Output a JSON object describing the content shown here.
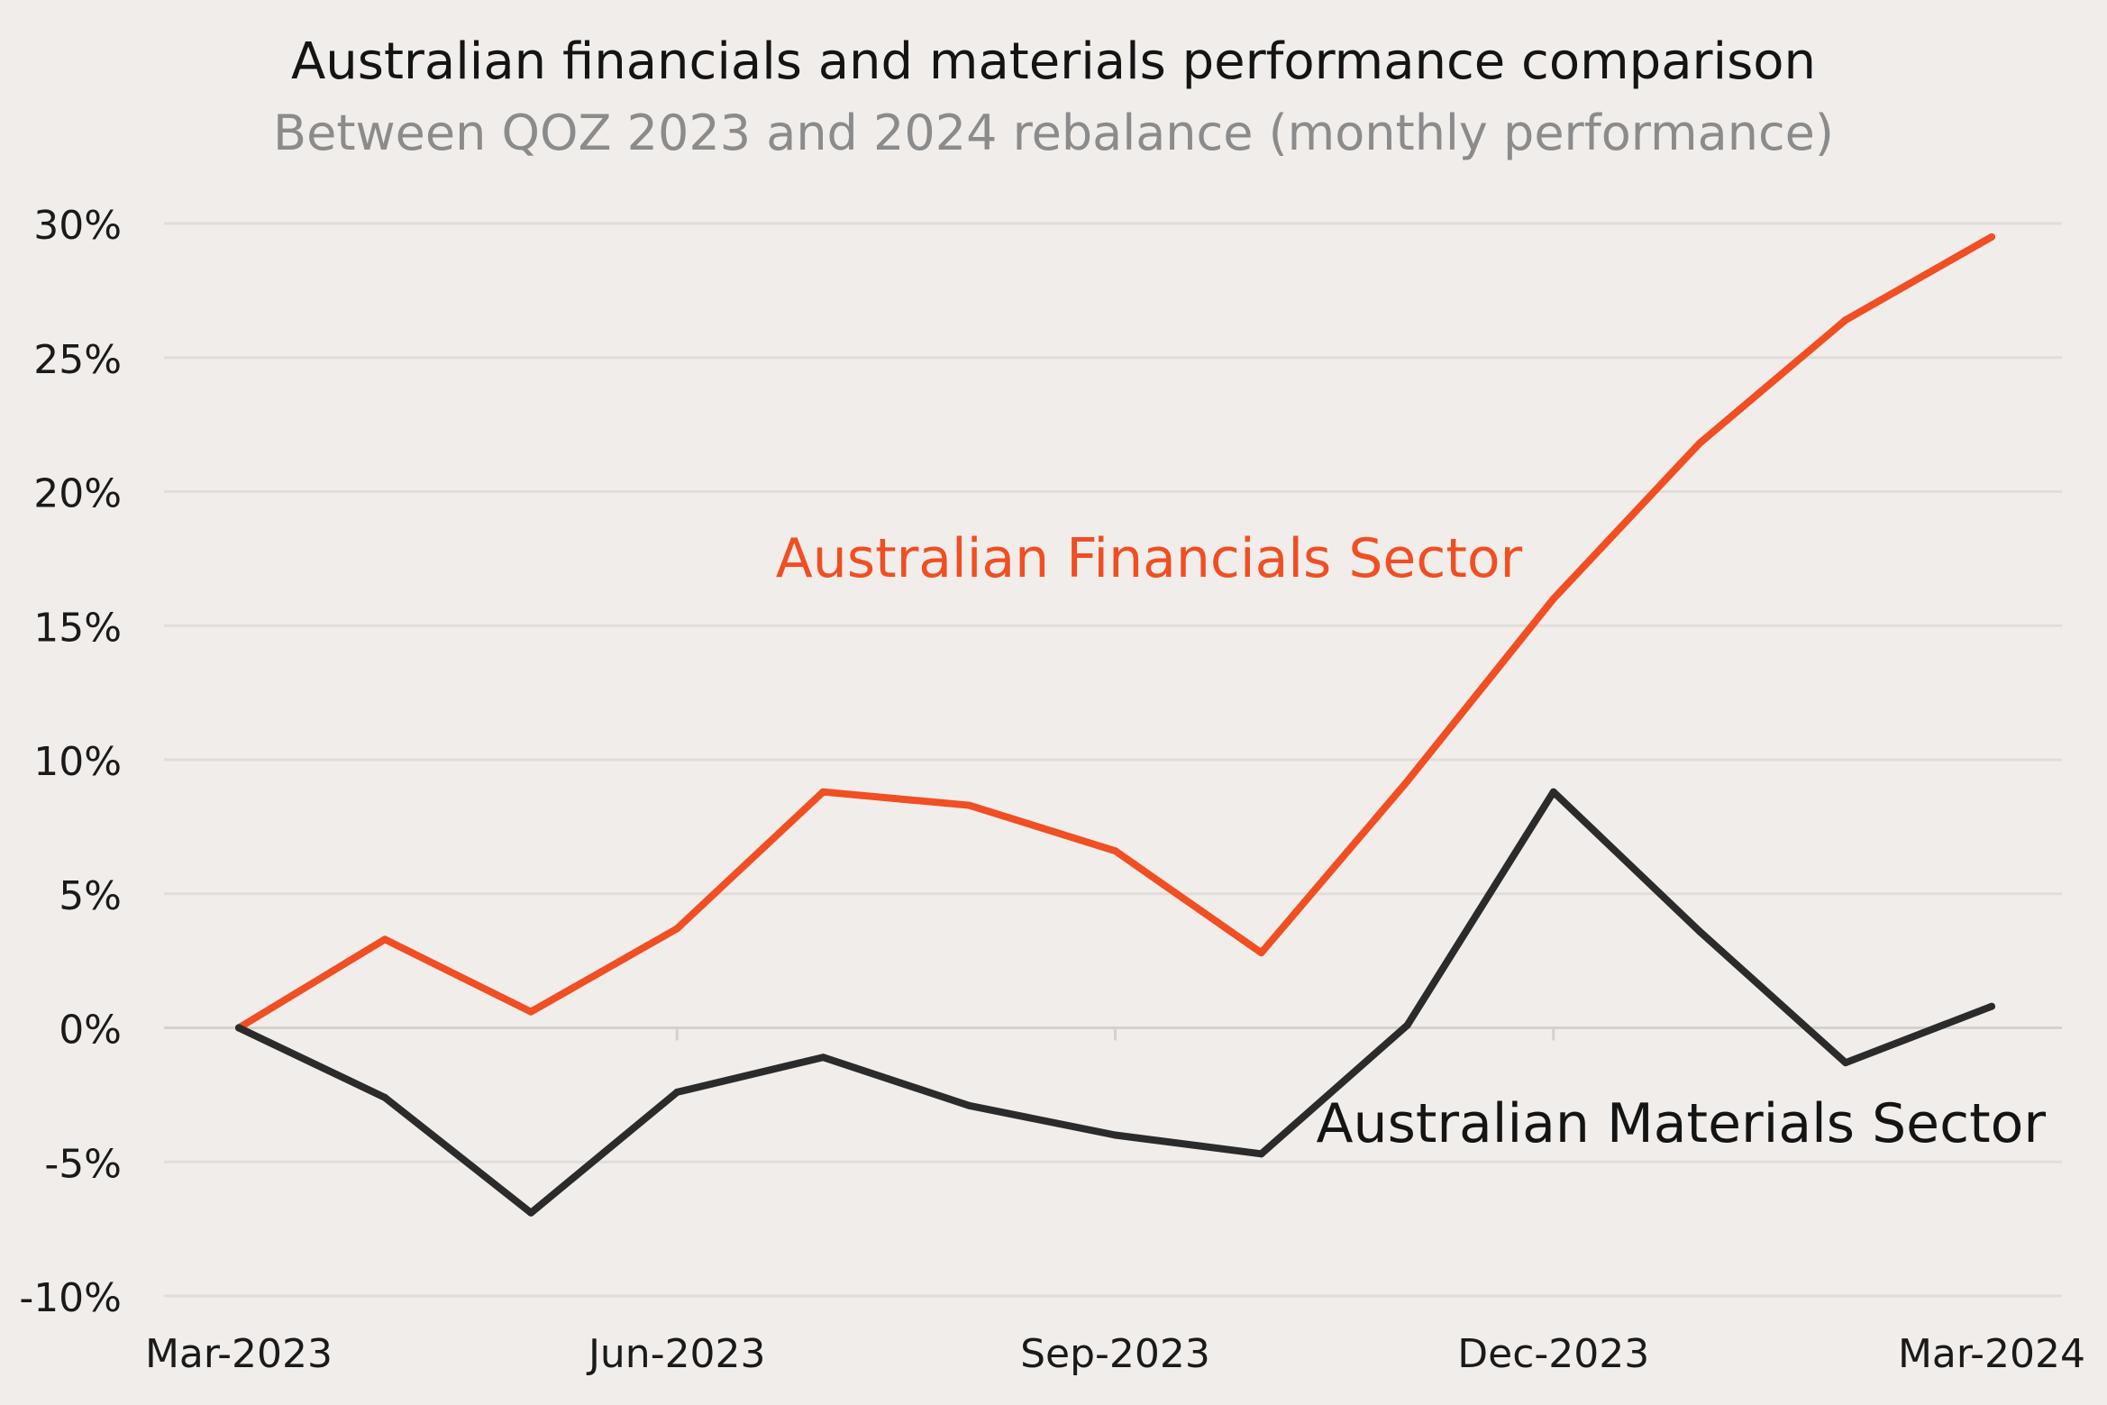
{
  "chart_data": {
    "type": "line",
    "title": "Australian financials and materials performance comparison",
    "subtitle": "Between QOZ 2023 and 2024 rebalance (monthly performance)",
    "xlabel": "",
    "ylabel": "",
    "x": [
      "Mar-2023",
      "Apr-2023",
      "May-2023",
      "Jun-2023",
      "Jul-2023",
      "Aug-2023",
      "Sep-2023",
      "Oct-2023",
      "Nov-2023",
      "Dec-2023",
      "Jan-2024",
      "Feb-2024",
      "Mar-2024"
    ],
    "x_tick_labels": [
      "Mar-2023",
      "Jun-2023",
      "Sep-2023",
      "Dec-2023",
      "Mar-2024"
    ],
    "y_tick_labels": [
      "30%",
      "25%",
      "20%",
      "15%",
      "10%",
      "5%",
      "0%",
      "-5%",
      "-10%"
    ],
    "y_ticks": [
      30,
      25,
      20,
      15,
      10,
      5,
      0,
      -5,
      -10
    ],
    "ylim": [
      -10,
      30
    ],
    "grid": true,
    "series": [
      {
        "name": "Australian Financials Sector",
        "color": "#f04e23",
        "values": [
          0,
          3.3,
          0.6,
          3.7,
          8.8,
          8.3,
          6.6,
          2.8,
          9.2,
          16.0,
          21.8,
          26.4,
          29.5
        ]
      },
      {
        "name": "Australian Materials Sector",
        "color": "#2b2b2b",
        "values": [
          0,
          -2.6,
          -6.9,
          -2.4,
          -1.1,
          -2.9,
          -4.0,
          -4.7,
          0.1,
          8.8,
          3.6,
          -1.3,
          0.8
        ]
      }
    ]
  }
}
